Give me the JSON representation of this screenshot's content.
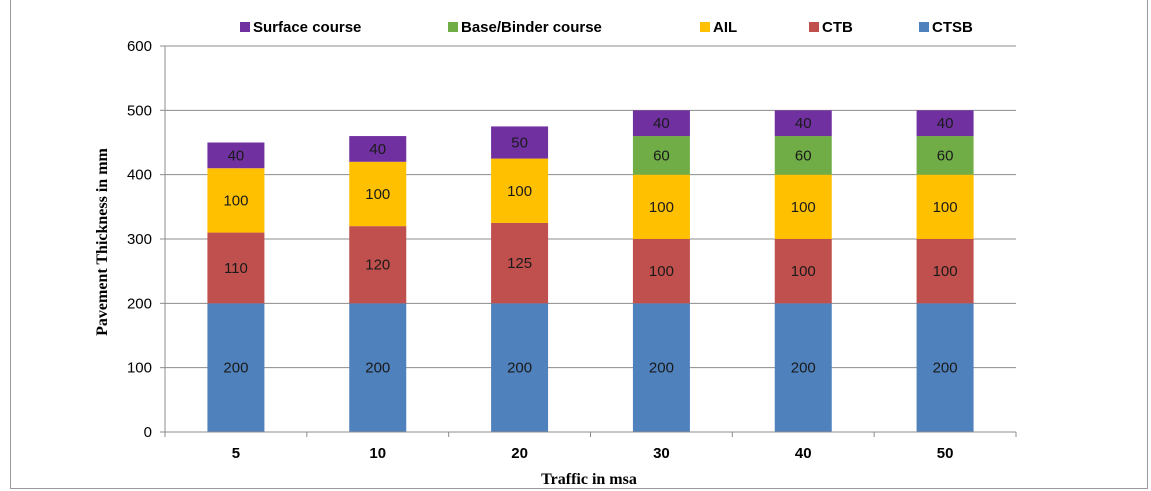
{
  "chart_data": {
    "type": "bar",
    "stacked": true,
    "title": "",
    "xlabel": "Traffic in msa",
    "ylabel": "Pavement Thickness in mm",
    "categories": [
      "5",
      "10",
      "20",
      "30",
      "40",
      "50"
    ],
    "ylim": [
      0,
      600
    ],
    "yticks": [
      0,
      100,
      200,
      300,
      400,
      500,
      600
    ],
    "grid": true,
    "legend_position": "top",
    "series": [
      {
        "name": "CTSB",
        "color": "#4f81bd",
        "values": [
          200,
          200,
          200,
          200,
          200,
          200
        ]
      },
      {
        "name": "CTB",
        "color": "#c0504d",
        "values": [
          110,
          120,
          125,
          100,
          100,
          100
        ]
      },
      {
        "name": "AIL",
        "color": "#ffc000",
        "values": [
          100,
          100,
          100,
          100,
          100,
          100
        ]
      },
      {
        "name": "Base/Binder course",
        "color": "#70ad47",
        "values": [
          0,
          0,
          0,
          60,
          60,
          60
        ]
      },
      {
        "name": "Surface course",
        "color": "#7030a0",
        "values": [
          40,
          40,
          50,
          40,
          40,
          40
        ]
      }
    ],
    "legend_order": [
      "Surface course",
      "Base/Binder course",
      "AIL",
      "CTB",
      "CTSB"
    ]
  }
}
